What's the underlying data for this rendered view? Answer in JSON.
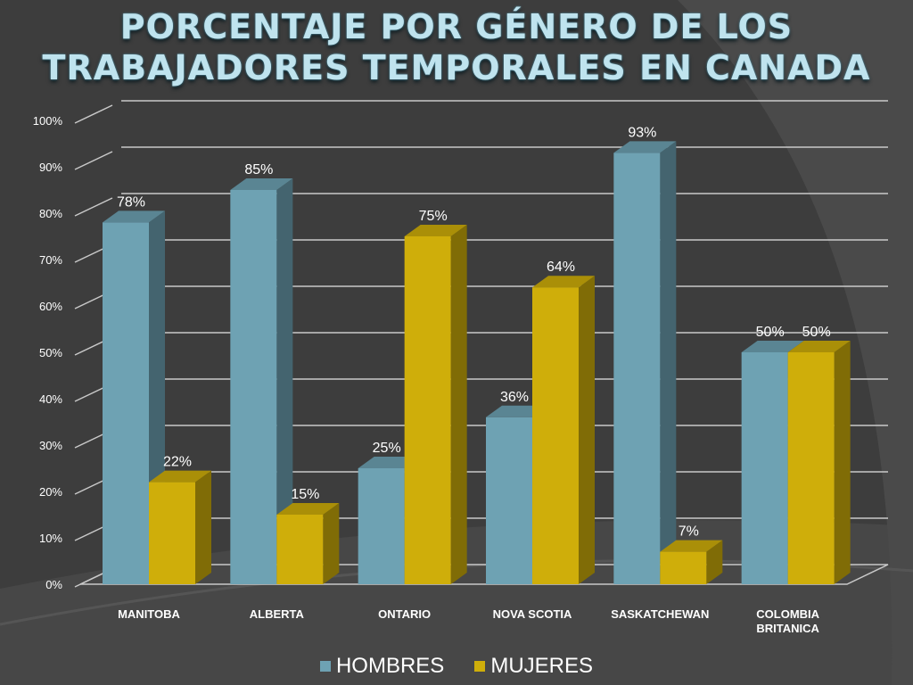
{
  "title_lines": [
    "PORCENTAJE POR GÉNERO DE LOS",
    "TRABAJADORES TEMPORALES EN CANADA"
  ],
  "colors": {
    "hombres": "#6ea2b3",
    "mujeres": "#cfae0a",
    "text": "#ffffff"
  },
  "chart_data": {
    "type": "bar",
    "title": "PORCENTAJE POR GÉNERO DE LOS TRABAJADORES TEMPORALES EN CANADA",
    "categories": [
      "MANITOBA",
      "ALBERTA",
      "ONTARIO",
      "NOVA SCOTIA",
      "SASKATCHEWAN",
      "COLOMBIA BRITANICA"
    ],
    "category_lines": [
      [
        "MANITOBA"
      ],
      [
        "ALBERTA"
      ],
      [
        "ONTARIO"
      ],
      [
        "NOVA SCOTIA"
      ],
      [
        "SASKATCHEWAN"
      ],
      [
        "COLOMBIA",
        "BRITANICA"
      ]
    ],
    "series": [
      {
        "name": "HOMBRES",
        "values": [
          78,
          85,
          25,
          36,
          93,
          50
        ],
        "labels": [
          "78%",
          "85%",
          "25%",
          "36%",
          "93%",
          "50%"
        ]
      },
      {
        "name": "MUJERES",
        "values": [
          22,
          15,
          75,
          64,
          7,
          50
        ],
        "labels": [
          "22%",
          "15%",
          "75%",
          "64%",
          "7%",
          "50%"
        ]
      }
    ],
    "yticks": [
      "0%",
      "10%",
      "20%",
      "30%",
      "40%",
      "50%",
      "60%",
      "70%",
      "80%",
      "90%",
      "100%"
    ],
    "ylim": [
      0,
      100
    ],
    "grid": true,
    "legend": "bottom",
    "style": "3d-column"
  }
}
